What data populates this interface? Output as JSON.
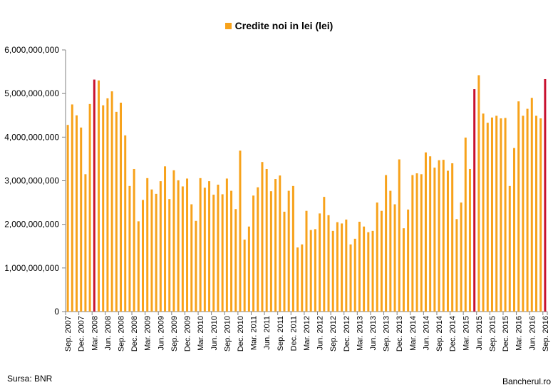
{
  "chart_data": {
    "type": "bar",
    "legend": "Credite noi in lei (lei)",
    "legend_position": "top-center",
    "grid": false,
    "colors": {
      "normal": "#F7A21B",
      "highlight": "#C8102E",
      "axis": "#808080"
    },
    "ylim": [
      0,
      6000000000
    ],
    "yticks": [
      0,
      1000000000,
      2000000000,
      3000000000,
      4000000000,
      5000000000,
      6000000000
    ],
    "ytick_labels": [
      "0",
      "1,000,000,000",
      "2,000,000,000",
      "3,000,000,000",
      "4,000,000,000",
      "5,000,000,000",
      "6,000,000,000"
    ],
    "x_tick_labels": [
      "Sep. 2007",
      "Dec. 2007",
      "Mar. 2008",
      "Jun. 2008",
      "Sep. 2008",
      "Dec. 2008",
      "Mar. 2009",
      "Jun. 2009",
      "Sep. 2009",
      "Dec. 2009",
      "Mar. 2010",
      "Jun. 2010",
      "Sep. 2010",
      "Dec. 2010",
      "Mar. 2011",
      "Jun. 2011",
      "Sep. 2011",
      "Dec. 2011",
      "Mar. 2012",
      "Jun. 2012",
      "Sep. 2012",
      "Dec. 2012",
      "Mar. 2013",
      "Jun. 2013",
      "Sep. 2013",
      "Dec. 2013",
      "Mar. 2014",
      "Jun. 2014",
      "Sep. 2014",
      "Dec. 2014",
      "Mar. 2015",
      "Jun. 2015",
      "Sep. 2015",
      "Dec. 2015",
      "Mar. 2016",
      "Jun. 2016",
      "Sep. 2016"
    ],
    "highlight_indices": [
      6,
      92,
      108
    ],
    "values": [
      4280000000,
      4750000000,
      4500000000,
      4220000000,
      3150000000,
      4760000000,
      5320000000,
      5300000000,
      4730000000,
      4890000000,
      5050000000,
      4580000000,
      4790000000,
      4040000000,
      2880000000,
      3270000000,
      2070000000,
      2560000000,
      3060000000,
      2800000000,
      2700000000,
      2990000000,
      3330000000,
      2580000000,
      3240000000,
      3010000000,
      2870000000,
      3050000000,
      2460000000,
      2080000000,
      3060000000,
      2840000000,
      2990000000,
      2680000000,
      2910000000,
      2690000000,
      3050000000,
      2770000000,
      2350000000,
      3690000000,
      1650000000,
      1950000000,
      2660000000,
      2850000000,
      3430000000,
      3270000000,
      2760000000,
      3040000000,
      3120000000,
      2290000000,
      2770000000,
      2880000000,
      1470000000,
      1540000000,
      2310000000,
      1870000000,
      1890000000,
      2250000000,
      2630000000,
      2210000000,
      1850000000,
      2050000000,
      2020000000,
      2110000000,
      1540000000,
      1670000000,
      2060000000,
      1950000000,
      1820000000,
      1850000000,
      2500000000,
      2310000000,
      3130000000,
      2770000000,
      2460000000,
      3490000000,
      1910000000,
      2340000000,
      3130000000,
      3170000000,
      3150000000,
      3650000000,
      3560000000,
      3300000000,
      3470000000,
      3480000000,
      3230000000,
      3400000000,
      2120000000,
      2500000000,
      3990000000,
      3270000000,
      5100000000,
      5420000000,
      4540000000,
      4330000000,
      4450000000,
      4490000000,
      4430000000,
      4440000000,
      2880000000,
      3750000000,
      4820000000,
      4490000000,
      4650000000,
      4900000000,
      4490000000,
      4430000000,
      5330000000
    ]
  },
  "footer": {
    "source": "Sursa: BNR",
    "brand": "Bancherul.ro"
  }
}
